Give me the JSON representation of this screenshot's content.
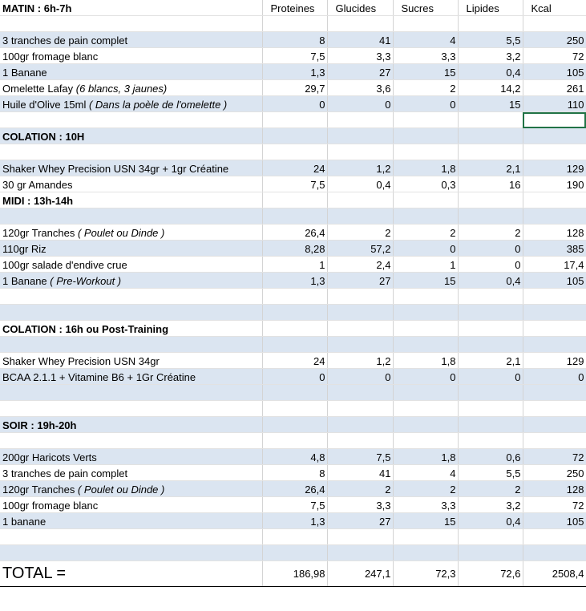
{
  "columns": [
    "Proteines",
    "Glucides",
    "Sucres",
    "Lipides",
    "Kcal"
  ],
  "sections": [
    {
      "title": "MATIN : 6h-7h",
      "rows": [
        {
          "label": "3 tranches de pain complet",
          "note": "",
          "values": [
            "8",
            "41",
            "4",
            "5,5",
            "250"
          ]
        },
        {
          "label": "100gr fromage blanc",
          "note": "",
          "values": [
            "7,5",
            "3,3",
            "3,3",
            "3,2",
            "72"
          ]
        },
        {
          "label": "1 Banane",
          "note": "",
          "values": [
            "1,3",
            "27",
            "15",
            "0,4",
            "105"
          ]
        },
        {
          "label": "Omelette Lafay ",
          "note": "(6 blancs, 3 jaunes)",
          "values": [
            "29,7",
            "3,6",
            "2",
            "14,2",
            "261"
          ]
        },
        {
          "label": "Huile d'Olive 15ml ",
          "note": "( Dans la poèle de l'omelette )",
          "values": [
            "0",
            "0",
            "0",
            "15",
            "110"
          ]
        }
      ]
    },
    {
      "title": "COLATION : 10H",
      "rows": [
        {
          "label": "Shaker Whey Precision USN 34gr + 1gr Créatine",
          "note": "",
          "values": [
            "24",
            "1,2",
            "1,8",
            "2,1",
            "129"
          ]
        },
        {
          "label": "30 gr Amandes",
          "note": "",
          "values": [
            "7,5",
            "0,4",
            "0,3",
            "16",
            "190"
          ]
        }
      ]
    },
    {
      "title": "MIDI : 13h-14h",
      "rows": [
        {
          "label": "120gr Tranches ",
          "note": "( Poulet ou Dinde )",
          "values": [
            "26,4",
            "2",
            "2",
            "2",
            "128"
          ]
        },
        {
          "label": "110gr Riz",
          "note": "",
          "values": [
            "8,28",
            "57,2",
            "0",
            "0",
            "385"
          ]
        },
        {
          "label": "100gr salade d'endive crue",
          "note": "",
          "values": [
            "1",
            "2,4",
            "1",
            "0",
            "17,4"
          ]
        },
        {
          "label": "1 Banane ",
          "note": "( Pre-Workout )",
          "values": [
            "1,3",
            "27",
            "15",
            "0,4",
            "105"
          ]
        }
      ]
    },
    {
      "title": "COLATION : 16h ou Post-Training",
      "rows": [
        {
          "label": "Shaker Whey Precision USN 34gr",
          "note": "",
          "values": [
            "24",
            "1,2",
            "1,8",
            "2,1",
            "129"
          ]
        },
        {
          "label": "BCAA 2.1.1 + Vitamine B6 + 1Gr Créatine",
          "note": "",
          "values": [
            "0",
            "0",
            "0",
            "0",
            "0"
          ]
        }
      ]
    },
    {
      "title": "SOIR : 19h-20h",
      "rows": [
        {
          "label": "200gr Haricots Verts",
          "note": "",
          "values": [
            "4,8",
            "7,5",
            "1,8",
            "0,6",
            "72"
          ]
        },
        {
          "label": "3 tranches de pain complet",
          "note": "",
          "values": [
            "8",
            "41",
            "4",
            "5,5",
            "250"
          ]
        },
        {
          "label": "120gr Tranches ",
          "note": "( Poulet ou Dinde )",
          "values": [
            "26,4",
            "2",
            "2",
            "2",
            "128"
          ]
        },
        {
          "label": "100gr fromage blanc",
          "note": "",
          "values": [
            "7,5",
            "3,3",
            "3,3",
            "3,2",
            "72"
          ]
        },
        {
          "label": "1 banane",
          "note": "",
          "values": [
            "1,3",
            "27",
            "15",
            "0,4",
            "105"
          ]
        }
      ]
    }
  ],
  "total": {
    "label": "TOTAL =",
    "values": [
      "186,98",
      "247,1",
      "72,3",
      "72,6",
      "2508,4"
    ]
  }
}
